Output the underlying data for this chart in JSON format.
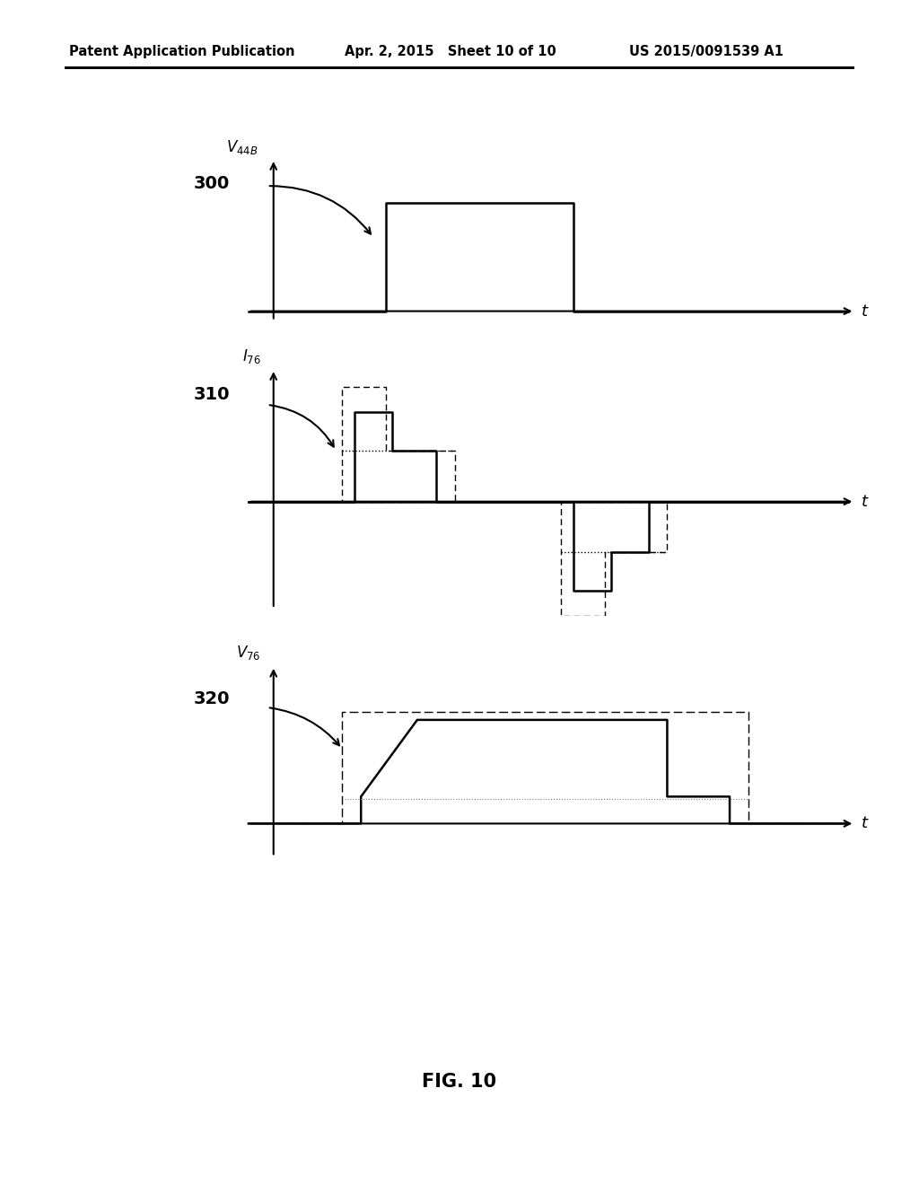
{
  "header_left": "Patent Application Publication",
  "header_center": "Apr. 2, 2015   Sheet 10 of 10",
  "header_right": "US 2015/0091539 A1",
  "fig_label": "FIG. 10",
  "bg_color": "#ffffff",
  "text_color": "#000000",
  "label_300": "300",
  "label_310": "310",
  "label_320": "320"
}
